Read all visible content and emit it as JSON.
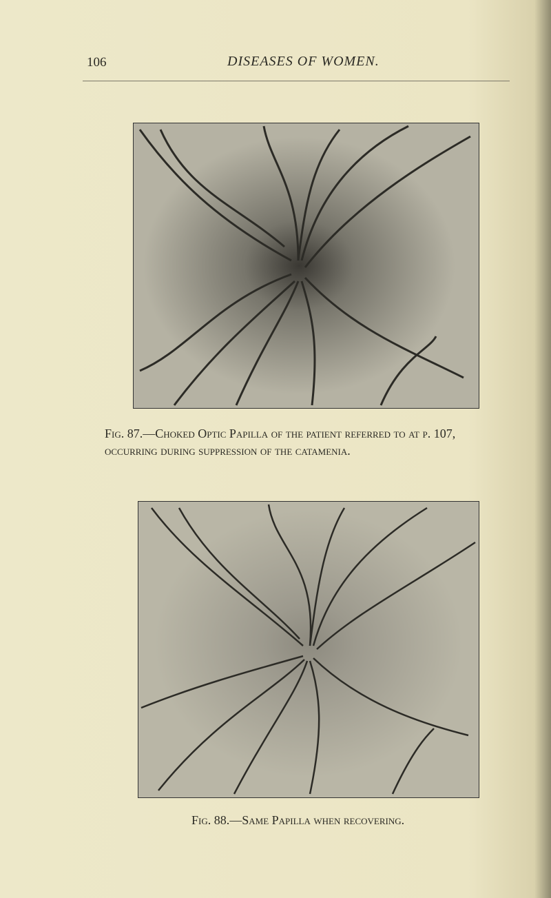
{
  "header": {
    "page_number": "106",
    "running_title": "DISEASES OF WOMEN."
  },
  "figures": [
    {
      "caption_label": "Fig. 87.",
      "caption": "—Choked Optic Papilla of the patient referred to at p. 107, occurring during suppression of the catamenia."
    },
    {
      "caption_label": "Fig. 88.",
      "caption": "—Same Papilla when recovering."
    }
  ]
}
